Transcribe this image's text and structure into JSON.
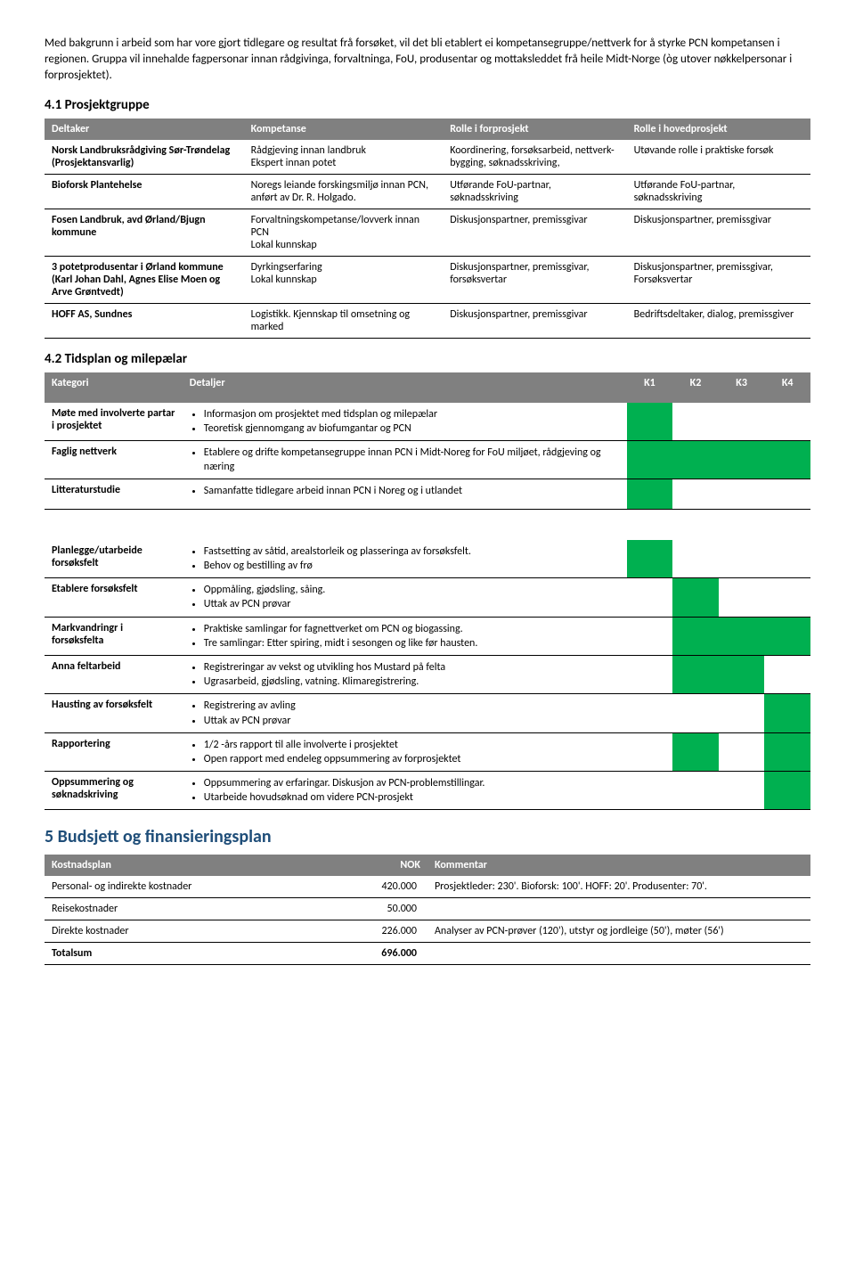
{
  "colors": {
    "header_bg": "#808080",
    "header_fg": "#ffffff",
    "green": "#00b050",
    "blue_heading": "#1f4e79",
    "section41": "#000000",
    "row_border": "#000000"
  },
  "intro": {
    "p1": "Med bakgrunn i arbeid som har vore gjort tidlegare og resultat frå forsøket, vil det bli etablert ei kompetansegruppe/nettverk for å styrke PCN kompetansen i regionen. Gruppa vil innehalde fagpersonar innan rådgivinga, forvaltninga, FoU, produsentar og mottaksleddet frå heile Midt-Norge (òg utover nøkkelpersonar i forprosjektet)."
  },
  "section41": {
    "title": "4.1   Prosjektgruppe",
    "headers": [
      "Deltaker",
      "Kompetanse",
      "Rolle i forprosjekt",
      "Rolle i hovedprosjekt"
    ],
    "rows": [
      {
        "c0": "Norsk Landbruksrådgiving Sør-Trøndelag (Prosjektansvarlig)",
        "c1": "Rådgjeving innan landbruk\nEkspert innan potet",
        "c2": "Koordinering, forsøksarbeid, nettverk-bygging, søknadsskriving,",
        "c3": "Utøvande rolle i praktiske forsøk"
      },
      {
        "c0": "Bioforsk Plantehelse",
        "c1": "Noregs leiande forskingsmiljø innan PCN, anført av Dr. R. Holgado.",
        "c2": "Utførande FoU-partnar, søknadsskriving",
        "c3": "Utførande FoU-partnar, søknadsskriving"
      },
      {
        "c0": "Fosen Landbruk, avd Ørland/Bjugn kommune",
        "c1": "Forvaltningskompetanse/lovverk innan PCN\nLokal kunnskap",
        "c2": "Diskusjonspartner, premissgivar",
        "c3": "Diskusjonspartner, premissgivar"
      },
      {
        "c0": "3 potetprodusentar i Ørland kommune (Karl Johan Dahl, Agnes Elise Moen og Arve Grøntvedt)",
        "c1": "Dyrkingserfaring\nLokal kunnskap",
        "c2": "Diskusjonspartner, premissgivar,\nforsøksvertar",
        "c3": "Diskusjonspartner, premissgivar,\nForsøksvertar"
      },
      {
        "c0": "HOFF AS, Sundnes",
        "c1": "Logistikk. Kjennskap til omsetning og marked",
        "c2": "Diskusjonspartner, premissgivar",
        "c3": "Bedriftsdeltaker, dialog, premissgiver"
      }
    ]
  },
  "section42": {
    "title": "4.2   Tidsplan og milepælar",
    "headers": [
      "Kategori",
      "Detaljer",
      "K1",
      "K2",
      "K3",
      "K4"
    ],
    "groups": [
      [
        {
          "cat": "Møte med involverte partar i prosjektet",
          "bullets": [
            "Informasjon om prosjektet med tidsplan og milepælar",
            "Teoretisk gjennomgang av biofumgantar og PCN"
          ],
          "k": [
            1,
            0,
            0,
            0
          ]
        },
        {
          "cat": "Faglig nettverk",
          "bullets": [
            "Etablere og drifte kompetansegruppe innan PCN i Midt-Noreg for FoU miljøet, rådgjeving og næring"
          ],
          "k": [
            1,
            1,
            1,
            1
          ]
        },
        {
          "cat": "Litteraturstudie",
          "bullets": [
            "Samanfatte tidlegare arbeid innan PCN i Noreg og i utlandet"
          ],
          "k": [
            1,
            0,
            0,
            0
          ]
        }
      ],
      [
        {
          "cat": "Planlegge/utarbeide forsøksfelt",
          "bullets": [
            "Fastsetting av såtid, arealstorleik og plasseringa av forsøksfelt.",
            "Behov og bestilling av frø"
          ],
          "k": [
            1,
            0,
            0,
            0
          ]
        },
        {
          "cat": "Etablere forsøksfelt",
          "bullets": [
            "Oppmåling, gjødsling, såing.",
            "Uttak av PCN prøvar"
          ],
          "k": [
            0,
            1,
            0,
            0
          ]
        },
        {
          "cat": "Markvandringr i forsøksfelta",
          "bullets": [
            "Praktiske samlingar for fagnettverket om PCN og biogassing.",
            "Tre samlingar: Etter spiring, midt i sesongen og like før hausten."
          ],
          "k": [
            0,
            1,
            1,
            1
          ]
        },
        {
          "cat": "Anna feltarbeid",
          "bullets": [
            "Registreringar av vekst og utvikling hos Mustard på felta",
            "Ugrasarbeid, gjødsling, vatning. Klimaregistrering."
          ],
          "k": [
            0,
            1,
            1,
            0
          ]
        },
        {
          "cat": "Hausting av forsøksfelt",
          "bullets": [
            "Registrering av avling",
            "Uttak av PCN prøvar"
          ],
          "k": [
            0,
            0,
            0,
            1
          ]
        },
        {
          "cat": "Rapportering",
          "bullets": [
            "1/2 -års rapport til alle involverte i prosjektet",
            "Open rapport med endeleg oppsummering av forprosjektet"
          ],
          "k": [
            0,
            1,
            0,
            1
          ]
        },
        {
          "cat": "Oppsummering og søknadskriving",
          "bullets": [
            "Oppsummering av erfaringar. Diskusjon av PCN-problemstillingar.",
            "Utarbeide hovudsøknad om videre PCN-prosjekt"
          ],
          "k": [
            0,
            0,
            0,
            1
          ]
        }
      ]
    ]
  },
  "section5": {
    "title": "5   Budsjett og finansieringsplan",
    "headers": [
      "Kostnadsplan",
      "NOK",
      "Kommentar"
    ],
    "rows": [
      {
        "c0": "Personal- og indirekte kostnader",
        "c1": "420.000",
        "c2": "Prosjektleder: 230'. Bioforsk: 100'. HOFF: 20'. Produsenter: 70'."
      },
      {
        "c0": "Reisekostnader",
        "c1": "50.000",
        "c2": ""
      },
      {
        "c0": "Direkte kostnader",
        "c1": "226.000",
        "c2": "Analyser av PCN-prøver (120'), utstyr og jordleige (50'), møter (56')"
      },
      {
        "c0": "Totalsum",
        "c1": "696.000",
        "c2": ""
      }
    ]
  }
}
